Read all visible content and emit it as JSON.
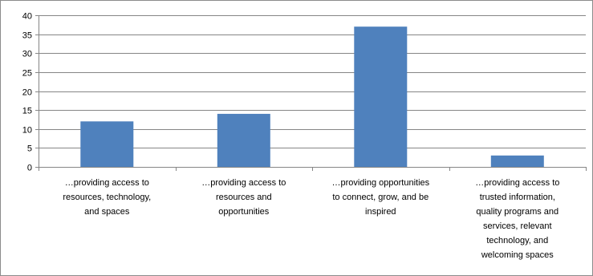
{
  "chart_data": {
    "type": "bar",
    "title": "",
    "xlabel": "",
    "ylabel": "",
    "ylim": [
      0,
      40
    ],
    "y_ticks": [
      0,
      5,
      10,
      15,
      20,
      25,
      30,
      35,
      40
    ],
    "grid": true,
    "legend": "none",
    "bar_color": "#4F81BD",
    "categories": [
      "…providing access to resources, technology, and spaces",
      "…providing access to resources and opportunities",
      "…providing opportunities to connect, grow, and be inspired",
      "…providing access to trusted information, quality programs and services, relevant technology, and welcoming spaces"
    ],
    "category_lines": [
      [
        "…providing access to",
        "resources, technology,",
        "and spaces"
      ],
      [
        "…providing access to",
        "resources and",
        "opportunities"
      ],
      [
        "…providing opportunities",
        "to connect, grow, and be",
        "inspired"
      ],
      [
        "…providing access to",
        "trusted information,",
        "quality programs and",
        "services, relevant",
        "technology, and",
        "welcoming spaces"
      ]
    ],
    "values": [
      12,
      14,
      37,
      3
    ]
  }
}
